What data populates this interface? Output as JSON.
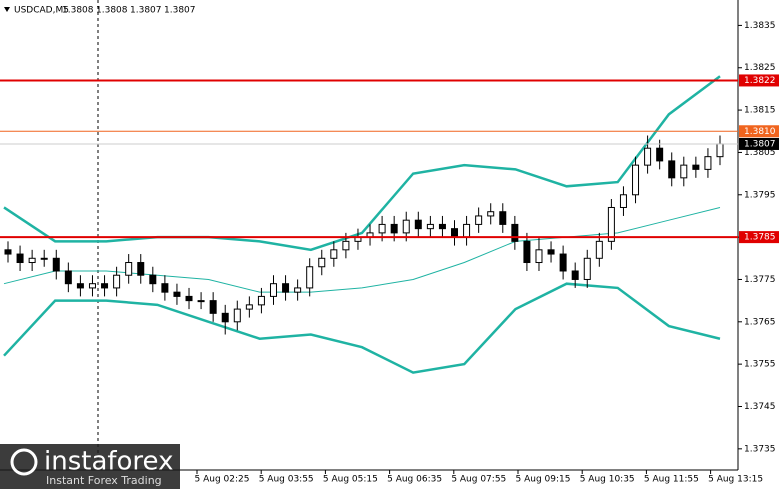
{
  "chart_data": {
    "type": "candlestick",
    "symbol": "USDCAD,M5",
    "header_values": [
      1.3808,
      1.3808,
      1.3807,
      1.3807
    ],
    "ylim": [
      1.373,
      1.3841
    ],
    "yticks": [
      1.3835,
      1.3825,
      1.3815,
      1.3805,
      1.3795,
      1.3785,
      1.3775,
      1.3765,
      1.3755,
      1.3745,
      1.3735
    ],
    "xtick_labels": [
      "5 Aug 02:25",
      "5 Aug 03:55",
      "5 Aug 05:15",
      "5 Aug 06:35",
      "5 Aug 07:55",
      "5 Aug 09:15",
      "5 Aug 10:35",
      "5 Aug 11:55",
      "5 Aug 13:15"
    ],
    "open": [
      1.3782,
      1.3781,
      1.3779,
      1.378,
      1.378,
      1.3777,
      1.3774,
      1.3773,
      1.3774,
      1.3773,
      1.3776,
      1.3779,
      1.3776,
      1.3774,
      1.3772,
      1.3771,
      1.377,
      1.377,
      1.3767,
      1.3765,
      1.3768,
      1.3769,
      1.3771,
      1.3774,
      1.3772,
      1.3773,
      1.3778,
      1.378,
      1.3782,
      1.3784,
      1.3785,
      1.3786,
      1.3788,
      1.3786,
      1.3789,
      1.3787,
      1.3788,
      1.3787,
      1.3785,
      1.3788,
      1.379,
      1.3791,
      1.3788,
      1.3784,
      1.3779,
      1.3782,
      1.3781,
      1.3777,
      1.3775,
      1.378,
      1.3784,
      1.3792,
      1.3795,
      1.3802,
      1.3806,
      1.3803,
      1.3799,
      1.3802,
      1.3801,
      1.3804
    ],
    "high": [
      1.3784,
      1.3783,
      1.3782,
      1.3782,
      1.3782,
      1.3779,
      1.3776,
      1.3776,
      1.3776,
      1.3778,
      1.3781,
      1.3781,
      1.3778,
      1.3776,
      1.3774,
      1.3773,
      1.3772,
      1.3772,
      1.3769,
      1.377,
      1.3771,
      1.3773,
      1.3776,
      1.3776,
      1.3775,
      1.378,
      1.3782,
      1.3784,
      1.3786,
      1.3787,
      1.3788,
      1.379,
      1.379,
      1.3791,
      1.3791,
      1.379,
      1.379,
      1.3789,
      1.379,
      1.3792,
      1.3793,
      1.3793,
      1.379,
      1.3786,
      1.3785,
      1.3784,
      1.3783,
      1.3779,
      1.3782,
      1.3786,
      1.3794,
      1.3797,
      1.3804,
      1.3809,
      1.3808,
      1.3805,
      1.3804,
      1.3804,
      1.3806,
      1.3809
    ],
    "low": [
      1.3779,
      1.3777,
      1.3777,
      1.3778,
      1.3775,
      1.3772,
      1.3771,
      1.3771,
      1.3771,
      1.3771,
      1.3774,
      1.3774,
      1.3772,
      1.377,
      1.3769,
      1.3768,
      1.3768,
      1.3765,
      1.3762,
      1.3763,
      1.3766,
      1.3767,
      1.3769,
      1.377,
      1.377,
      1.3771,
      1.3776,
      1.3778,
      1.378,
      1.3782,
      1.3783,
      1.3784,
      1.3784,
      1.3784,
      1.3785,
      1.3785,
      1.3785,
      1.3783,
      1.3783,
      1.3786,
      1.3788,
      1.3786,
      1.3782,
      1.3777,
      1.3777,
      1.3779,
      1.3775,
      1.3773,
      1.3773,
      1.3778,
      1.3782,
      1.379,
      1.3793,
      1.38,
      1.3801,
      1.3797,
      1.3797,
      1.3799,
      1.3799,
      1.3802
    ],
    "close": [
      1.3781,
      1.3779,
      1.378,
      1.378,
      1.3777,
      1.3774,
      1.3773,
      1.3774,
      1.3773,
      1.3776,
      1.3779,
      1.3776,
      1.3774,
      1.3772,
      1.3771,
      1.377,
      1.377,
      1.3767,
      1.3765,
      1.3768,
      1.3769,
      1.3771,
      1.3774,
      1.3772,
      1.3773,
      1.3778,
      1.378,
      1.3782,
      1.3784,
      1.3785,
      1.3786,
      1.3788,
      1.3786,
      1.3789,
      1.3787,
      1.3788,
      1.3787,
      1.3785,
      1.3788,
      1.379,
      1.3791,
      1.3788,
      1.3784,
      1.3779,
      1.3782,
      1.3781,
      1.3777,
      1.3775,
      1.378,
      1.3784,
      1.3792,
      1.3795,
      1.3802,
      1.3806,
      1.3803,
      1.3799,
      1.3802,
      1.3801,
      1.3804,
      1.3807
    ],
    "bands": [
      {
        "color": "#1fb3a3",
        "width": 2.5,
        "values": [
          1.3792,
          1.3784,
          1.3784,
          1.3785,
          1.3785,
          1.3784,
          1.3782,
          1.3786,
          1.38,
          1.3802,
          1.3801,
          1.3797,
          1.3798,
          1.3814,
          1.3823
        ]
      },
      {
        "color": "#1fb3a3",
        "width": 1,
        "values": [
          1.3774,
          1.3777,
          1.3777,
          1.3776,
          1.3775,
          1.3772,
          1.3772,
          1.3773,
          1.3775,
          1.3779,
          1.3784,
          1.3785,
          1.3786,
          1.3789,
          1.3792
        ]
      },
      {
        "color": "#1fb3a3",
        "width": 2.5,
        "values": [
          1.3757,
          1.377,
          1.377,
          1.3769,
          1.3765,
          1.3761,
          1.3762,
          1.3759,
          1.3753,
          1.3755,
          1.3768,
          1.3774,
          1.3773,
          1.3764,
          1.3761
        ]
      }
    ],
    "levels": [
      {
        "value": 1.3822,
        "color": "#e00000"
      },
      {
        "value": 1.381,
        "label": "1.3810",
        "color": "#f0641e"
      },
      {
        "value": 1.3785,
        "color": "#e00000"
      }
    ],
    "last_price": 1.3807,
    "watermark": "instaforex",
    "watermark_sub": "Instant Forex Trading"
  }
}
